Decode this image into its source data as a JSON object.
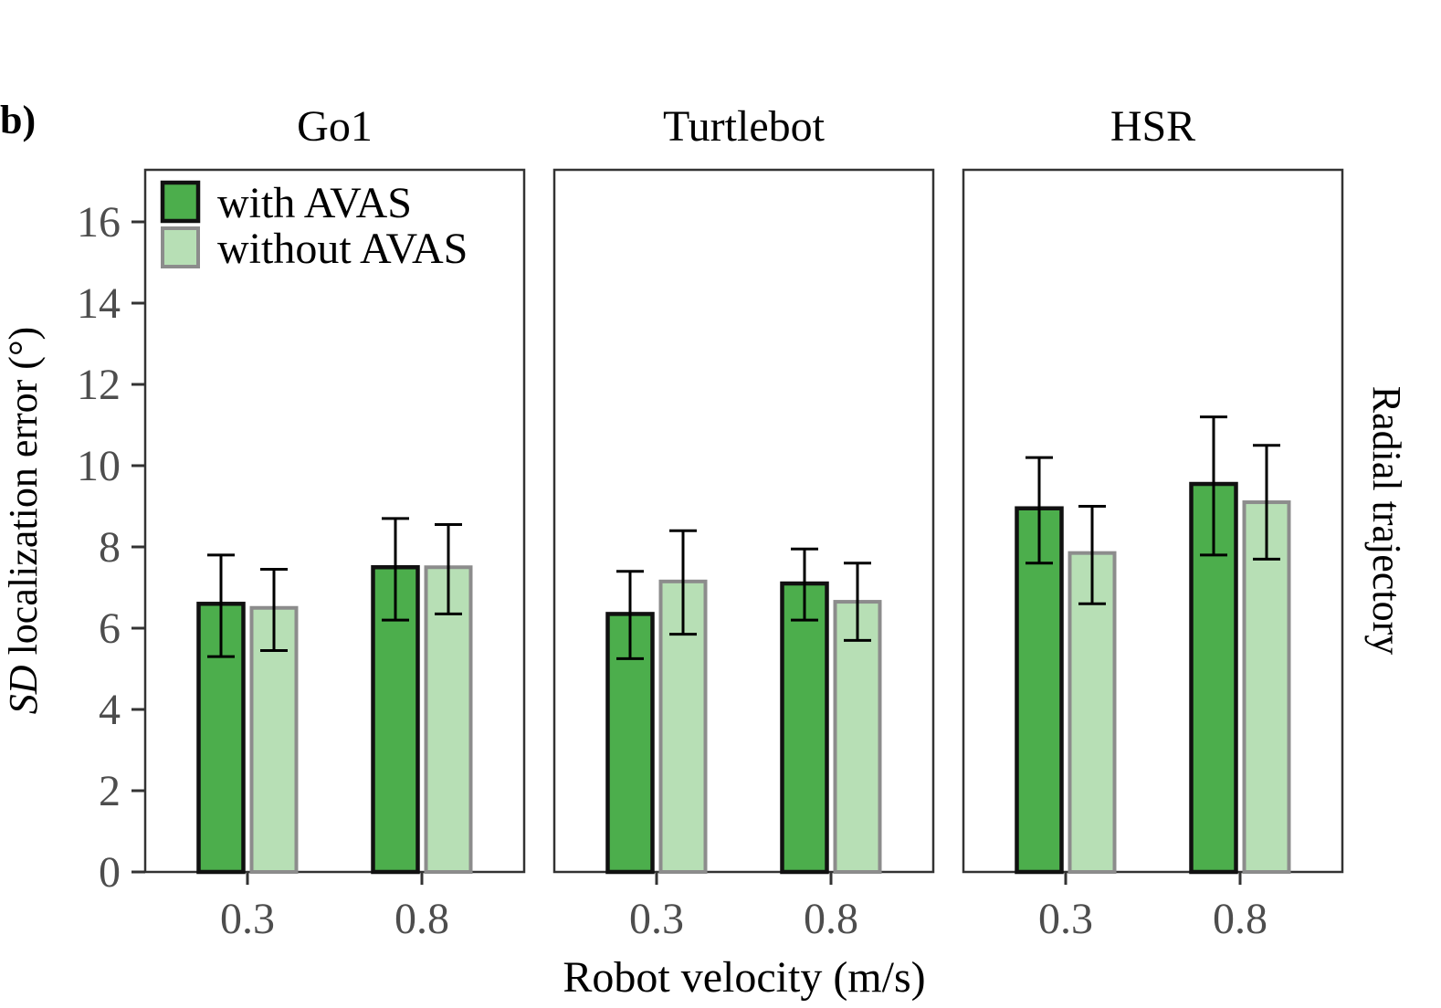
{
  "figure": {
    "panel_letter": "b)",
    "ylabel_italic": "SD",
    "ylabel_rest": " localization error (°)",
    "xlabel": "Robot velocity (m/s)",
    "row_strip": "Radial trajectory"
  },
  "colors": {
    "with_fill": "#4cae4c",
    "with_stroke": "#111111",
    "without_fill": "#b7dfb5",
    "without_stroke": "#8c8c8c",
    "axis": "#333333",
    "tick_text": "#4d4d4d"
  },
  "chart_data": {
    "type": "bar",
    "ylim": [
      0,
      17.2
    ],
    "yticks": [
      "0",
      "2",
      "4",
      "6",
      "8",
      "10",
      "12",
      "14",
      "16"
    ],
    "grid": false,
    "legend_position": "top-left",
    "legend": [
      "with AVAS",
      "without AVAS"
    ],
    "categories": [
      "0.3",
      "0.8"
    ],
    "panels": [
      {
        "title": "Go1",
        "series": [
          {
            "name": "with AVAS",
            "values": [
              6.6,
              7.5
            ],
            "err_low": [
              5.3,
              6.2
            ],
            "err_high": [
              7.8,
              8.7
            ]
          },
          {
            "name": "without AVAS",
            "values": [
              6.5,
              7.5
            ],
            "err_low": [
              5.45,
              6.35
            ],
            "err_high": [
              7.45,
              8.55
            ]
          }
        ]
      },
      {
        "title": "Turtlebot",
        "series": [
          {
            "name": "with AVAS",
            "values": [
              6.35,
              7.1
            ],
            "err_low": [
              5.25,
              6.2
            ],
            "err_high": [
              7.4,
              7.95
            ]
          },
          {
            "name": "without AVAS",
            "values": [
              7.15,
              6.65
            ],
            "err_low": [
              5.85,
              5.7
            ],
            "err_high": [
              8.4,
              7.6
            ]
          }
        ]
      },
      {
        "title": "HSR",
        "series": [
          {
            "name": "with AVAS",
            "values": [
              8.95,
              9.55
            ],
            "err_low": [
              7.6,
              7.8
            ],
            "err_high": [
              10.2,
              11.2
            ]
          },
          {
            "name": "without AVAS",
            "values": [
              7.85,
              9.1
            ],
            "err_low": [
              6.6,
              7.7
            ],
            "err_high": [
              9.0,
              10.5
            ]
          }
        ]
      }
    ]
  }
}
